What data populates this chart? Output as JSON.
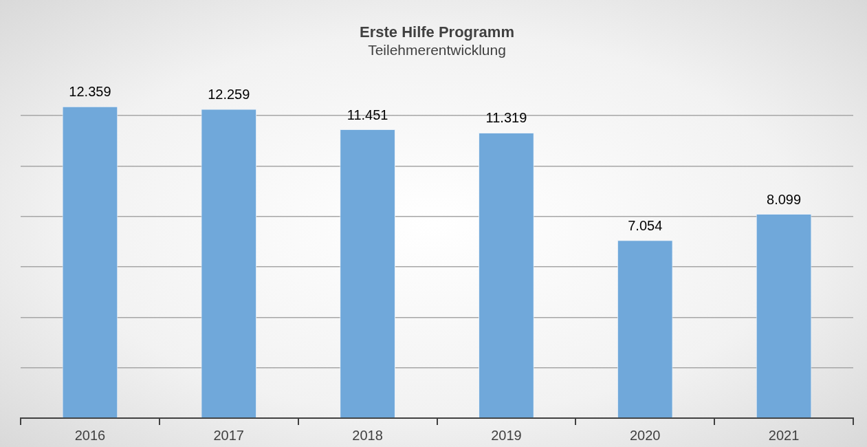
{
  "chart_data": {
    "type": "bar",
    "title": "Erste Hilfe Programm",
    "subtitle": "Teilehmerentwicklung",
    "categories": [
      "2016",
      "2017",
      "2018",
      "2019",
      "2020",
      "2021"
    ],
    "values": [
      12359,
      12259,
      11451,
      11319,
      7054,
      8099
    ],
    "value_labels": [
      "12.359",
      "12.259",
      "11.451",
      "11.319",
      "7.054",
      "8.099"
    ],
    "color": "#70a8da",
    "yticks": [
      0,
      2000,
      4000,
      6000,
      8000,
      10000,
      12000
    ],
    "tick_labels": "x",
    "grid": "y",
    "legend": false
  }
}
